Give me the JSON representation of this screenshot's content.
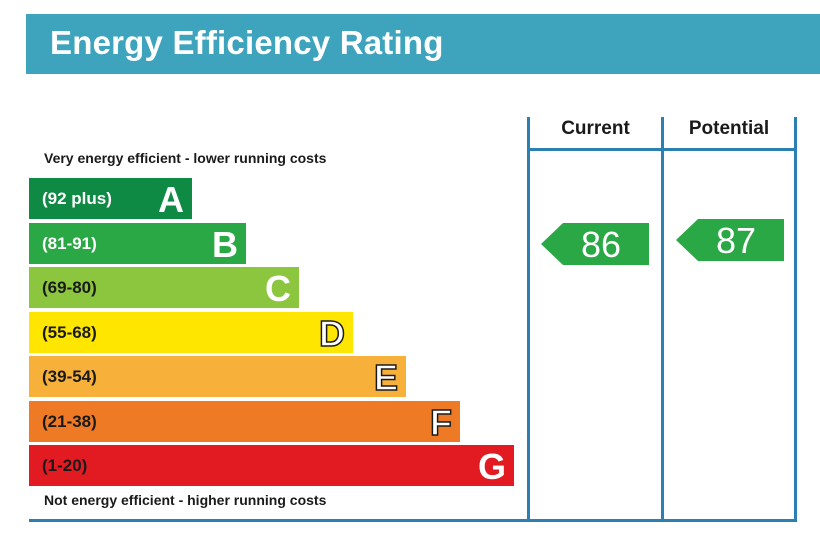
{
  "title": "Energy Efficiency Rating",
  "caption_top": "Very energy efficient - lower running costs",
  "caption_bottom": "Not energy efficient - higher running costs",
  "columns": {
    "current": "Current",
    "potential": "Potential"
  },
  "colors": {
    "title_bar": "#3ea3bd",
    "frame": "#2b7fb1",
    "A": "#0f8a45",
    "B": "#2aa845",
    "C": "#8cc63f",
    "D": "#ffe600",
    "E": "#f7b03a",
    "F": "#ef7a25",
    "G": "#e21b23"
  },
  "chart_data": {
    "type": "bar",
    "title": "Energy Efficiency Rating",
    "categories": [
      "A",
      "B",
      "C",
      "D",
      "E",
      "F",
      "G"
    ],
    "bands": [
      {
        "letter": "A",
        "range": "(92 plus)",
        "color": "#0f8a45"
      },
      {
        "letter": "B",
        "range": "(81-91)",
        "color": "#2aa845"
      },
      {
        "letter": "C",
        "range": "(69-80)",
        "color": "#8cc63f"
      },
      {
        "letter": "D",
        "range": "(55-68)",
        "color": "#ffe600"
      },
      {
        "letter": "E",
        "range": "(39-54)",
        "color": "#f7b03a"
      },
      {
        "letter": "F",
        "range": "(21-38)",
        "color": "#ef7a25"
      },
      {
        "letter": "G",
        "range": "(1-20)",
        "color": "#e21b23"
      }
    ],
    "current": {
      "value": 86,
      "band": "B"
    },
    "potential": {
      "value": 87,
      "band": "B"
    }
  }
}
